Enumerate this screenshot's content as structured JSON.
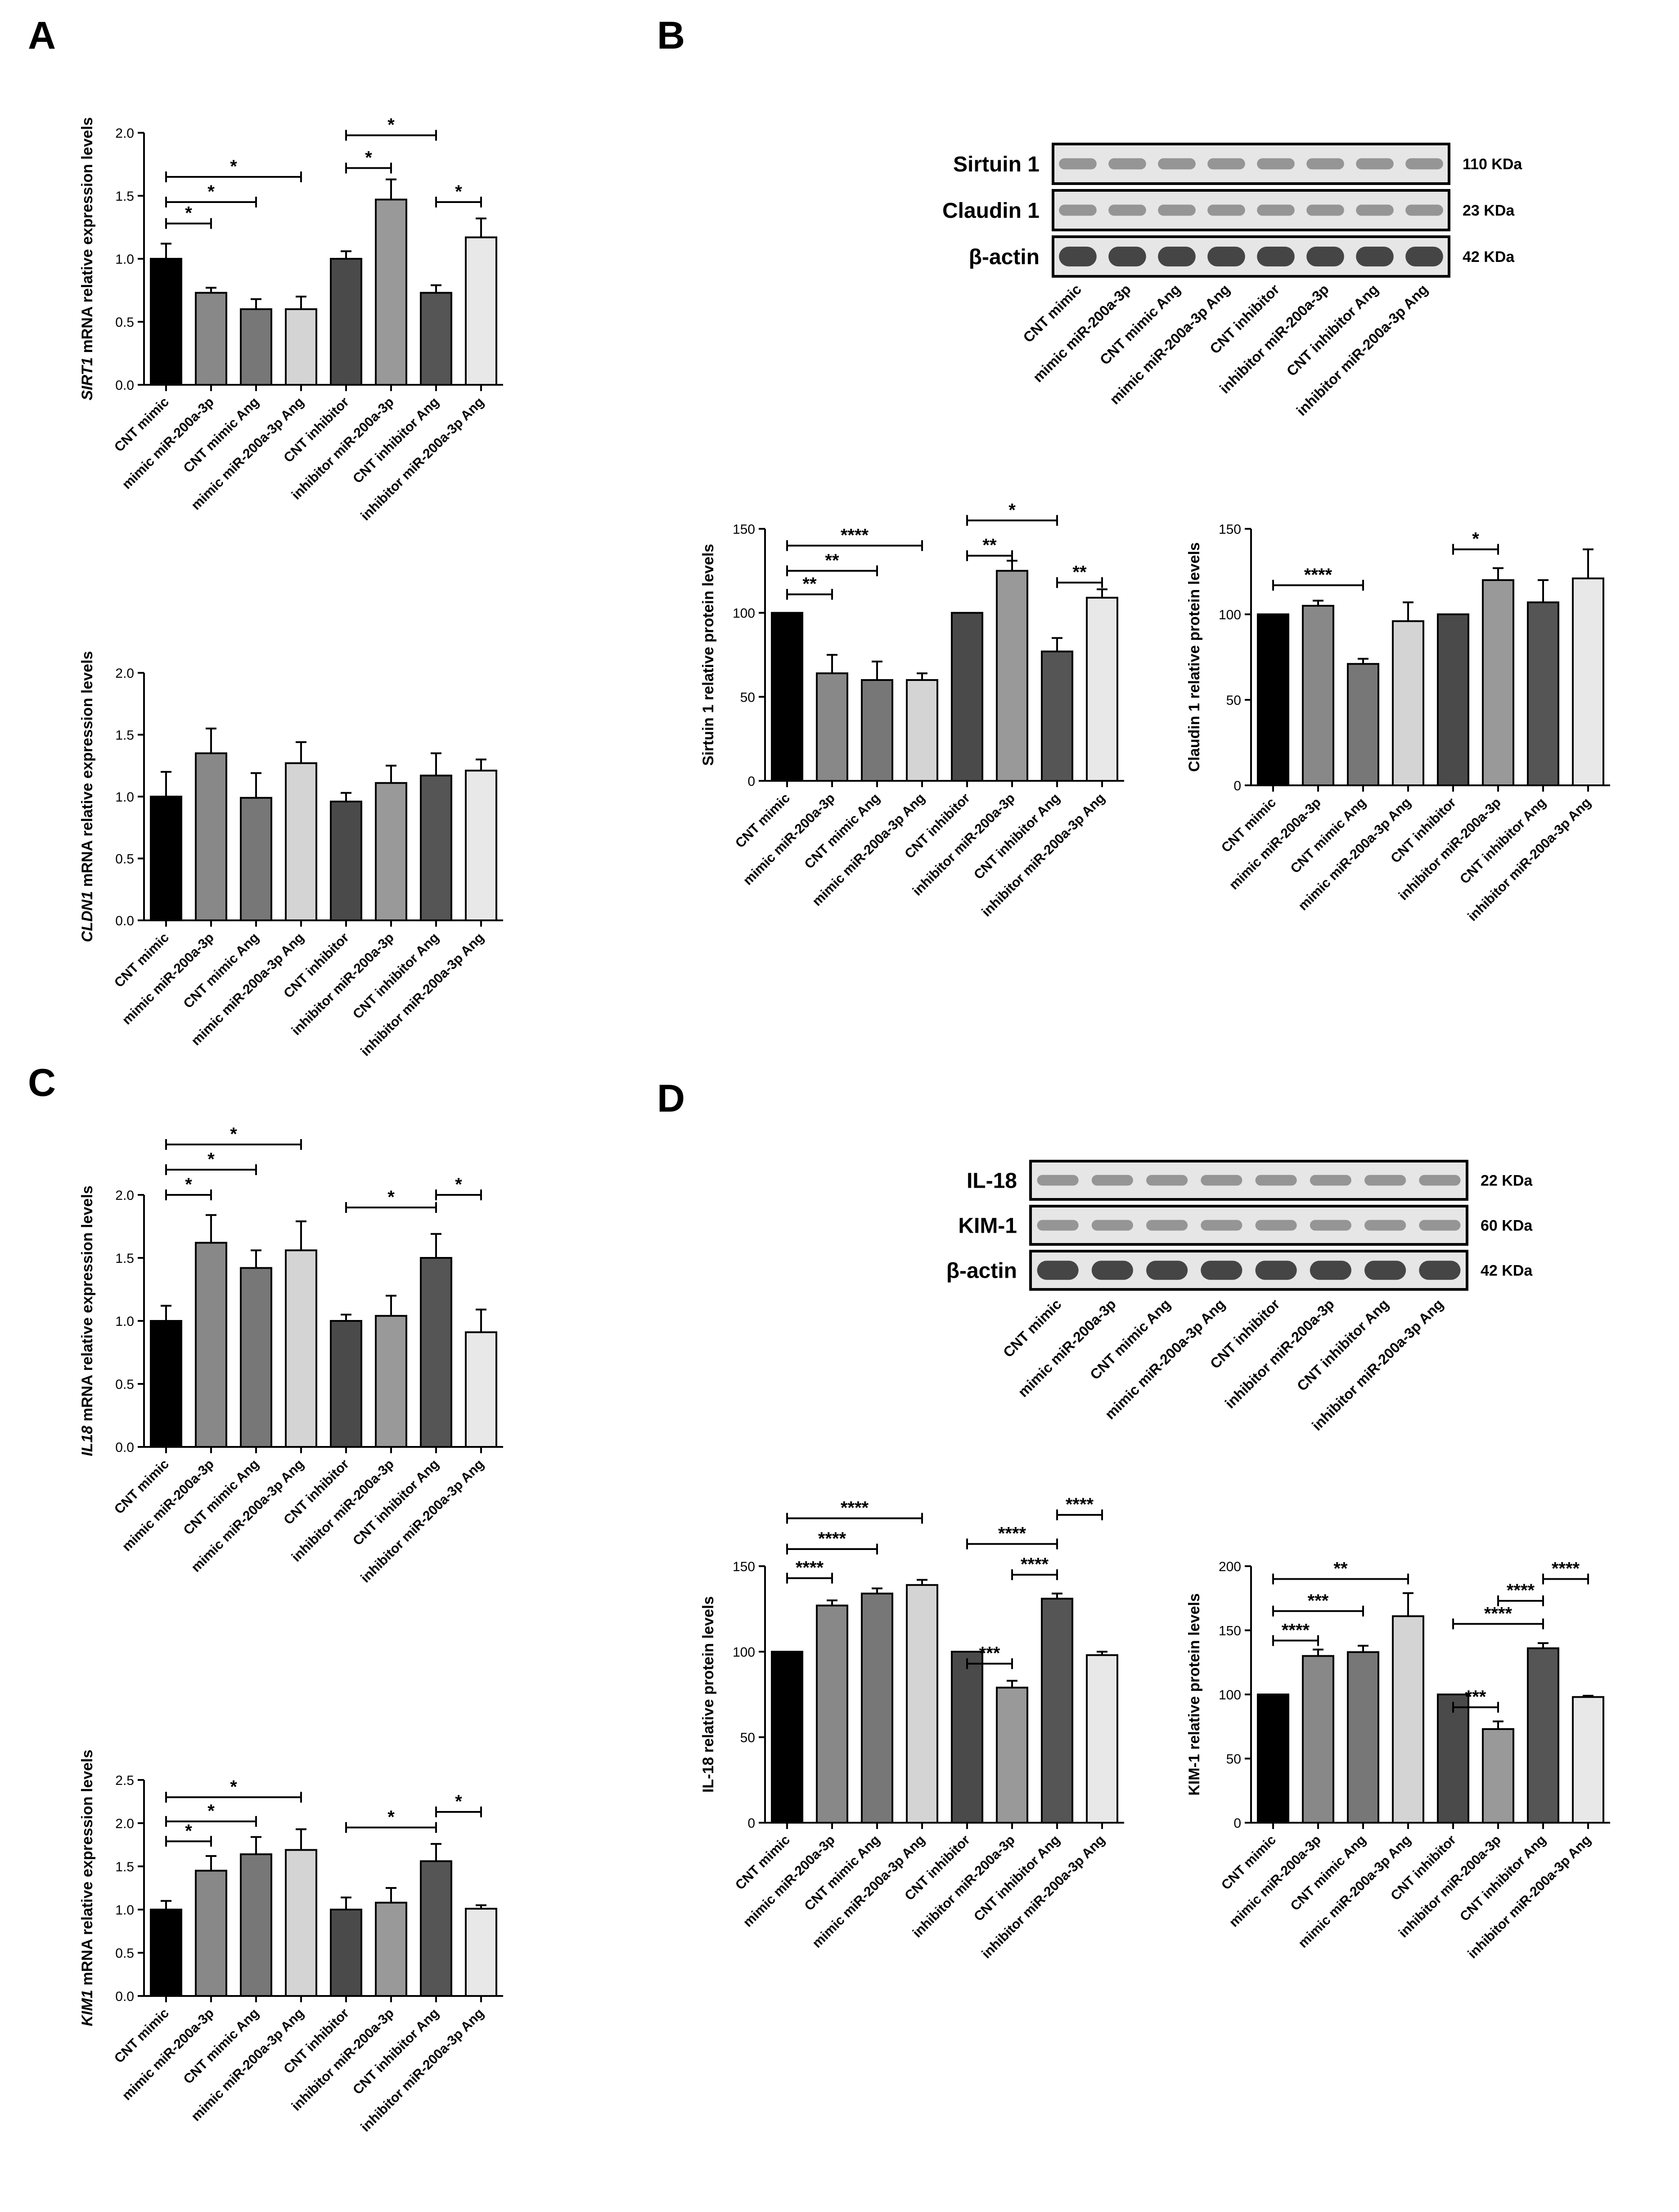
{
  "panel_labels": [
    "A",
    "B",
    "C",
    "D"
  ],
  "colors": {
    "ink": "#000000",
    "blot_bg": "#e6e6e6",
    "band": "#333333"
  },
  "group_labels": [
    "CNT mimic",
    "mimic miR-200a-3p",
    "CNT mimic Ang",
    "mimic miR-200a-3p Ang",
    "CNT inhibitor",
    "inhibitor miR-200a-3p",
    "CNT inhibitor Ang",
    "inhibitor miR-200a-3p Ang"
  ],
  "blots": [
    {
      "name": "blot-B",
      "rows": [
        {
          "label": "Sirtuin 1",
          "size": "110 KDa"
        },
        {
          "label": "Claudin 1",
          "size": "23 KDa"
        },
        {
          "label": "β-actin",
          "size": "42 KDa"
        }
      ],
      "lanes": [
        "CNT mimic",
        "mimic miR-200a-3p",
        "CNT mimic Ang",
        "mimic miR-200a-3p Ang",
        "CNT inhibitor",
        "inhibitor miR-200a-3p",
        "CNT inhibitor Ang",
        "inhibitor miR-200a-3p Ang"
      ]
    },
    {
      "name": "blot-D",
      "rows": [
        {
          "label": "IL-18",
          "size": "22 KDa"
        },
        {
          "label": "KIM-1",
          "size": "60 KDa"
        },
        {
          "label": "β-actin",
          "size": "42 KDa"
        }
      ],
      "lanes": [
        "CNT mimic",
        "mimic miR-200a-3p",
        "CNT mimic Ang",
        "mimic miR-200a-3p Ang",
        "CNT inhibitor",
        "inhibitor miR-200a-3p",
        "CNT inhibitor Ang",
        "inhibitor miR-200a-3p Ang"
      ]
    }
  ],
  "chart_data": [
    {
      "id": "sirt1-mrna",
      "panel": "A",
      "type": "bar",
      "ylabel_italic": "SIRT1",
      "ylabel_rest": " mRNA relative expression levels",
      "categories": [
        "CNT mimic",
        "mimic miR-200a-3p",
        "CNT mimic Ang",
        "mimic miR-200a-3p Ang",
        "CNT inhibitor",
        "inhibitor miR-200a-3p",
        "CNT inhibitor Ang",
        "inhibitor miR-200a-3p Ang"
      ],
      "values": [
        1.0,
        0.73,
        0.6,
        0.6,
        1.0,
        1.47,
        0.73,
        1.17
      ],
      "errors": [
        0.12,
        0.04,
        0.08,
        0.1,
        0.06,
        0.16,
        0.06,
        0.15
      ],
      "ylim": [
        0,
        2.0
      ],
      "ticks": [
        "0.0",
        "0.5",
        "1.0",
        "1.5",
        "2.0"
      ],
      "significance": [
        {
          "from": 0,
          "to": 1,
          "label": "*",
          "y": 1.28
        },
        {
          "from": 0,
          "to": 2,
          "label": "*",
          "y": 1.45
        },
        {
          "from": 0,
          "to": 3,
          "label": "*",
          "y": 1.65
        },
        {
          "from": 4,
          "to": 5,
          "label": "*",
          "y": 1.72
        },
        {
          "from": 4,
          "to": 6,
          "label": "*",
          "y": 1.98
        },
        {
          "from": 6,
          "to": 7,
          "label": "*",
          "y": 1.45
        }
      ]
    },
    {
      "id": "cldn1-mrna",
      "panel": "A",
      "type": "bar",
      "ylabel_italic": "CLDN1",
      "ylabel_rest": " mRNA relative expression levels",
      "categories": [
        "CNT mimic",
        "mimic miR-200a-3p",
        "CNT mimic Ang",
        "mimic miR-200a-3p Ang",
        "CNT inhibitor",
        "inhibitor miR-200a-3p",
        "CNT inhibitor Ang",
        "inhibitor miR-200a-3p Ang"
      ],
      "values": [
        1.0,
        1.35,
        0.99,
        1.27,
        0.96,
        1.11,
        1.17,
        1.21
      ],
      "errors": [
        0.2,
        0.2,
        0.2,
        0.17,
        0.07,
        0.14,
        0.18,
        0.09
      ],
      "ylim": [
        0,
        2.0
      ],
      "ticks": [
        "0.0",
        "0.5",
        "1.0",
        "1.5",
        "2.0"
      ],
      "significance": []
    },
    {
      "id": "sirtuin1-protein",
      "panel": "B",
      "type": "bar",
      "ylabel_italic": "",
      "ylabel_rest": "Sirtuin 1 relative protein levels",
      "categories": [
        "CNT mimic",
        "mimic miR-200a-3p",
        "CNT mimic Ang",
        "mimic miR-200a-3p Ang",
        "CNT inhibitor",
        "inhibitor miR-200a-3p",
        "CNT inhibitor Ang",
        "inhibitor miR-200a-3p Ang"
      ],
      "values": [
        100,
        64,
        60,
        60,
        100,
        125,
        77,
        109
      ],
      "errors": [
        0,
        11,
        11,
        4,
        0,
        6,
        8,
        5
      ],
      "ylim": [
        0,
        150
      ],
      "ticks": [
        "0",
        "50",
        "100",
        "150"
      ],
      "significance": [
        {
          "from": 0,
          "to": 1,
          "label": "**",
          "y": 111
        },
        {
          "from": 0,
          "to": 2,
          "label": "**",
          "y": 125
        },
        {
          "from": 0,
          "to": 3,
          "label": "****",
          "y": 140
        },
        {
          "from": 4,
          "to": 5,
          "label": "**",
          "y": 134
        },
        {
          "from": 4,
          "to": 6,
          "label": "*",
          "y": 155
        },
        {
          "from": 6,
          "to": 7,
          "label": "**",
          "y": 118
        }
      ]
    },
    {
      "id": "claudin1-protein",
      "panel": "B",
      "type": "bar",
      "ylabel_italic": "",
      "ylabel_rest": "Claudin 1 relative protein levels",
      "categories": [
        "CNT mimic",
        "mimic miR-200a-3p",
        "CNT mimic Ang",
        "mimic miR-200a-3p Ang",
        "CNT inhibitor",
        "inhibitor miR-200a-3p",
        "CNT inhibitor Ang",
        "inhibitor miR-200a-3p Ang"
      ],
      "values": [
        100,
        105,
        71,
        96,
        100,
        120,
        107,
        121
      ],
      "errors": [
        0,
        3,
        3,
        11,
        0,
        7,
        13,
        17
      ],
      "ylim": [
        0,
        150
      ],
      "ticks": [
        "0",
        "50",
        "100",
        "150"
      ],
      "significance": [
        {
          "from": 0,
          "to": 2,
          "label": "****",
          "y": 117
        },
        {
          "from": 4,
          "to": 5,
          "label": "*",
          "y": 138
        }
      ]
    },
    {
      "id": "il18-mrna",
      "panel": "C",
      "type": "bar",
      "ylabel_italic": "IL18",
      "ylabel_rest": " mRNA relative expression levels",
      "categories": [
        "CNT mimic",
        "mimic miR-200a-3p",
        "CNT mimic Ang",
        "mimic miR-200a-3p Ang",
        "CNT inhibitor",
        "inhibitor miR-200a-3p",
        "CNT inhibitor Ang",
        "inhibitor miR-200a-3p Ang"
      ],
      "values": [
        1.0,
        1.62,
        1.42,
        1.56,
        1.0,
        1.04,
        1.5,
        0.91
      ],
      "errors": [
        0.12,
        0.22,
        0.14,
        0.23,
        0.05,
        0.16,
        0.19,
        0.18
      ],
      "ylim": [
        0,
        2.0
      ],
      "ticks": [
        "0.0",
        "0.5",
        "1.0",
        "1.5",
        "2.0"
      ],
      "significance": [
        {
          "from": 0,
          "to": 1,
          "label": "*",
          "y": 2.0
        },
        {
          "from": 0,
          "to": 2,
          "label": "*",
          "y": 2.2
        },
        {
          "from": 0,
          "to": 3,
          "label": "*",
          "y": 2.4
        },
        {
          "from": 4,
          "to": 6,
          "label": "*",
          "y": 1.9
        },
        {
          "from": 6,
          "to": 7,
          "label": "*",
          "y": 2.0
        }
      ]
    },
    {
      "id": "kim1-mrna",
      "panel": "C",
      "type": "bar",
      "ylabel_italic": "KIM1",
      "ylabel_rest": " mRNA relative expression levels",
      "categories": [
        "CNT mimic",
        "mimic miR-200a-3p",
        "CNT mimic Ang",
        "mimic miR-200a-3p Ang",
        "CNT inhibitor",
        "inhibitor miR-200a-3p",
        "CNT inhibitor Ang",
        "inhibitor miR-200a-3p Ang"
      ],
      "values": [
        1.0,
        1.45,
        1.64,
        1.69,
        1.0,
        1.08,
        1.56,
        1.01
      ],
      "errors": [
        0.1,
        0.17,
        0.2,
        0.24,
        0.14,
        0.17,
        0.2,
        0.04
      ],
      "ylim": [
        0,
        2.5
      ],
      "ticks": [
        "0.0",
        "0.5",
        "1.0",
        "1.5",
        "2.0",
        "2.5"
      ],
      "significance": [
        {
          "from": 0,
          "to": 1,
          "label": "*",
          "y": 1.79
        },
        {
          "from": 0,
          "to": 2,
          "label": "*",
          "y": 2.02
        },
        {
          "from": 0,
          "to": 3,
          "label": "*",
          "y": 2.3
        },
        {
          "from": 4,
          "to": 6,
          "label": "*",
          "y": 1.95
        },
        {
          "from": 6,
          "to": 7,
          "label": "*",
          "y": 2.13
        }
      ]
    },
    {
      "id": "il18-protein",
      "panel": "D",
      "type": "bar",
      "ylabel_italic": "",
      "ylabel_rest": "IL-18 relative protein levels",
      "categories": [
        "CNT mimic",
        "mimic miR-200a-3p",
        "CNT mimic Ang",
        "mimic miR-200a-3p Ang",
        "CNT inhibitor",
        "inhibitor miR-200a-3p",
        "CNT inhibitor Ang",
        "inhibitor miR-200a-3p Ang"
      ],
      "values": [
        100,
        127,
        134,
        139,
        100,
        79,
        131,
        98
      ],
      "errors": [
        0,
        3,
        3,
        3,
        0,
        4,
        3,
        2
      ],
      "ylim": [
        0,
        150
      ],
      "ticks": [
        "0",
        "50",
        "100",
        "150"
      ],
      "significance": [
        {
          "from": 0,
          "to": 1,
          "label": "****",
          "y": 143
        },
        {
          "from": 0,
          "to": 2,
          "label": "****",
          "y": 160
        },
        {
          "from": 0,
          "to": 3,
          "label": "****",
          "y": 178
        },
        {
          "from": 4,
          "to": 5,
          "label": "***",
          "y": 93
        },
        {
          "from": 4,
          "to": 6,
          "label": "****",
          "y": 163
        },
        {
          "from": 5,
          "to": 6,
          "label": "****",
          "y": 145
        },
        {
          "from": 6,
          "to": 7,
          "label": "****",
          "y": 180
        }
      ]
    },
    {
      "id": "kim1-protein",
      "panel": "D",
      "type": "bar",
      "ylabel_italic": "",
      "ylabel_rest": "KIM-1 relative protein levels",
      "categories": [
        "CNT mimic",
        "mimic miR-200a-3p",
        "CNT mimic Ang",
        "mimic miR-200a-3p Ang",
        "CNT inhibitor",
        "inhibitor miR-200a-3p",
        "CNT inhibitor Ang",
        "inhibitor miR-200a-3p Ang"
      ],
      "values": [
        100,
        130,
        133,
        161,
        100,
        73,
        136,
        98
      ],
      "errors": [
        0,
        5,
        5,
        18,
        0,
        6,
        4,
        1
      ],
      "ylim": [
        0,
        200
      ],
      "ticks": [
        "0",
        "50",
        "100",
        "150",
        "200"
      ],
      "significance": [
        {
          "from": 0,
          "to": 1,
          "label": "****",
          "y": 142
        },
        {
          "from": 0,
          "to": 2,
          "label": "***",
          "y": 165
        },
        {
          "from": 0,
          "to": 3,
          "label": "**",
          "y": 190
        },
        {
          "from": 4,
          "to": 5,
          "label": "***",
          "y": 90
        },
        {
          "from": 4,
          "to": 6,
          "label": "****",
          "y": 155
        },
        {
          "from": 5,
          "to": 6,
          "label": "****",
          "y": 173
        },
        {
          "from": 6,
          "to": 7,
          "label": "****",
          "y": 190
        }
      ]
    }
  ]
}
